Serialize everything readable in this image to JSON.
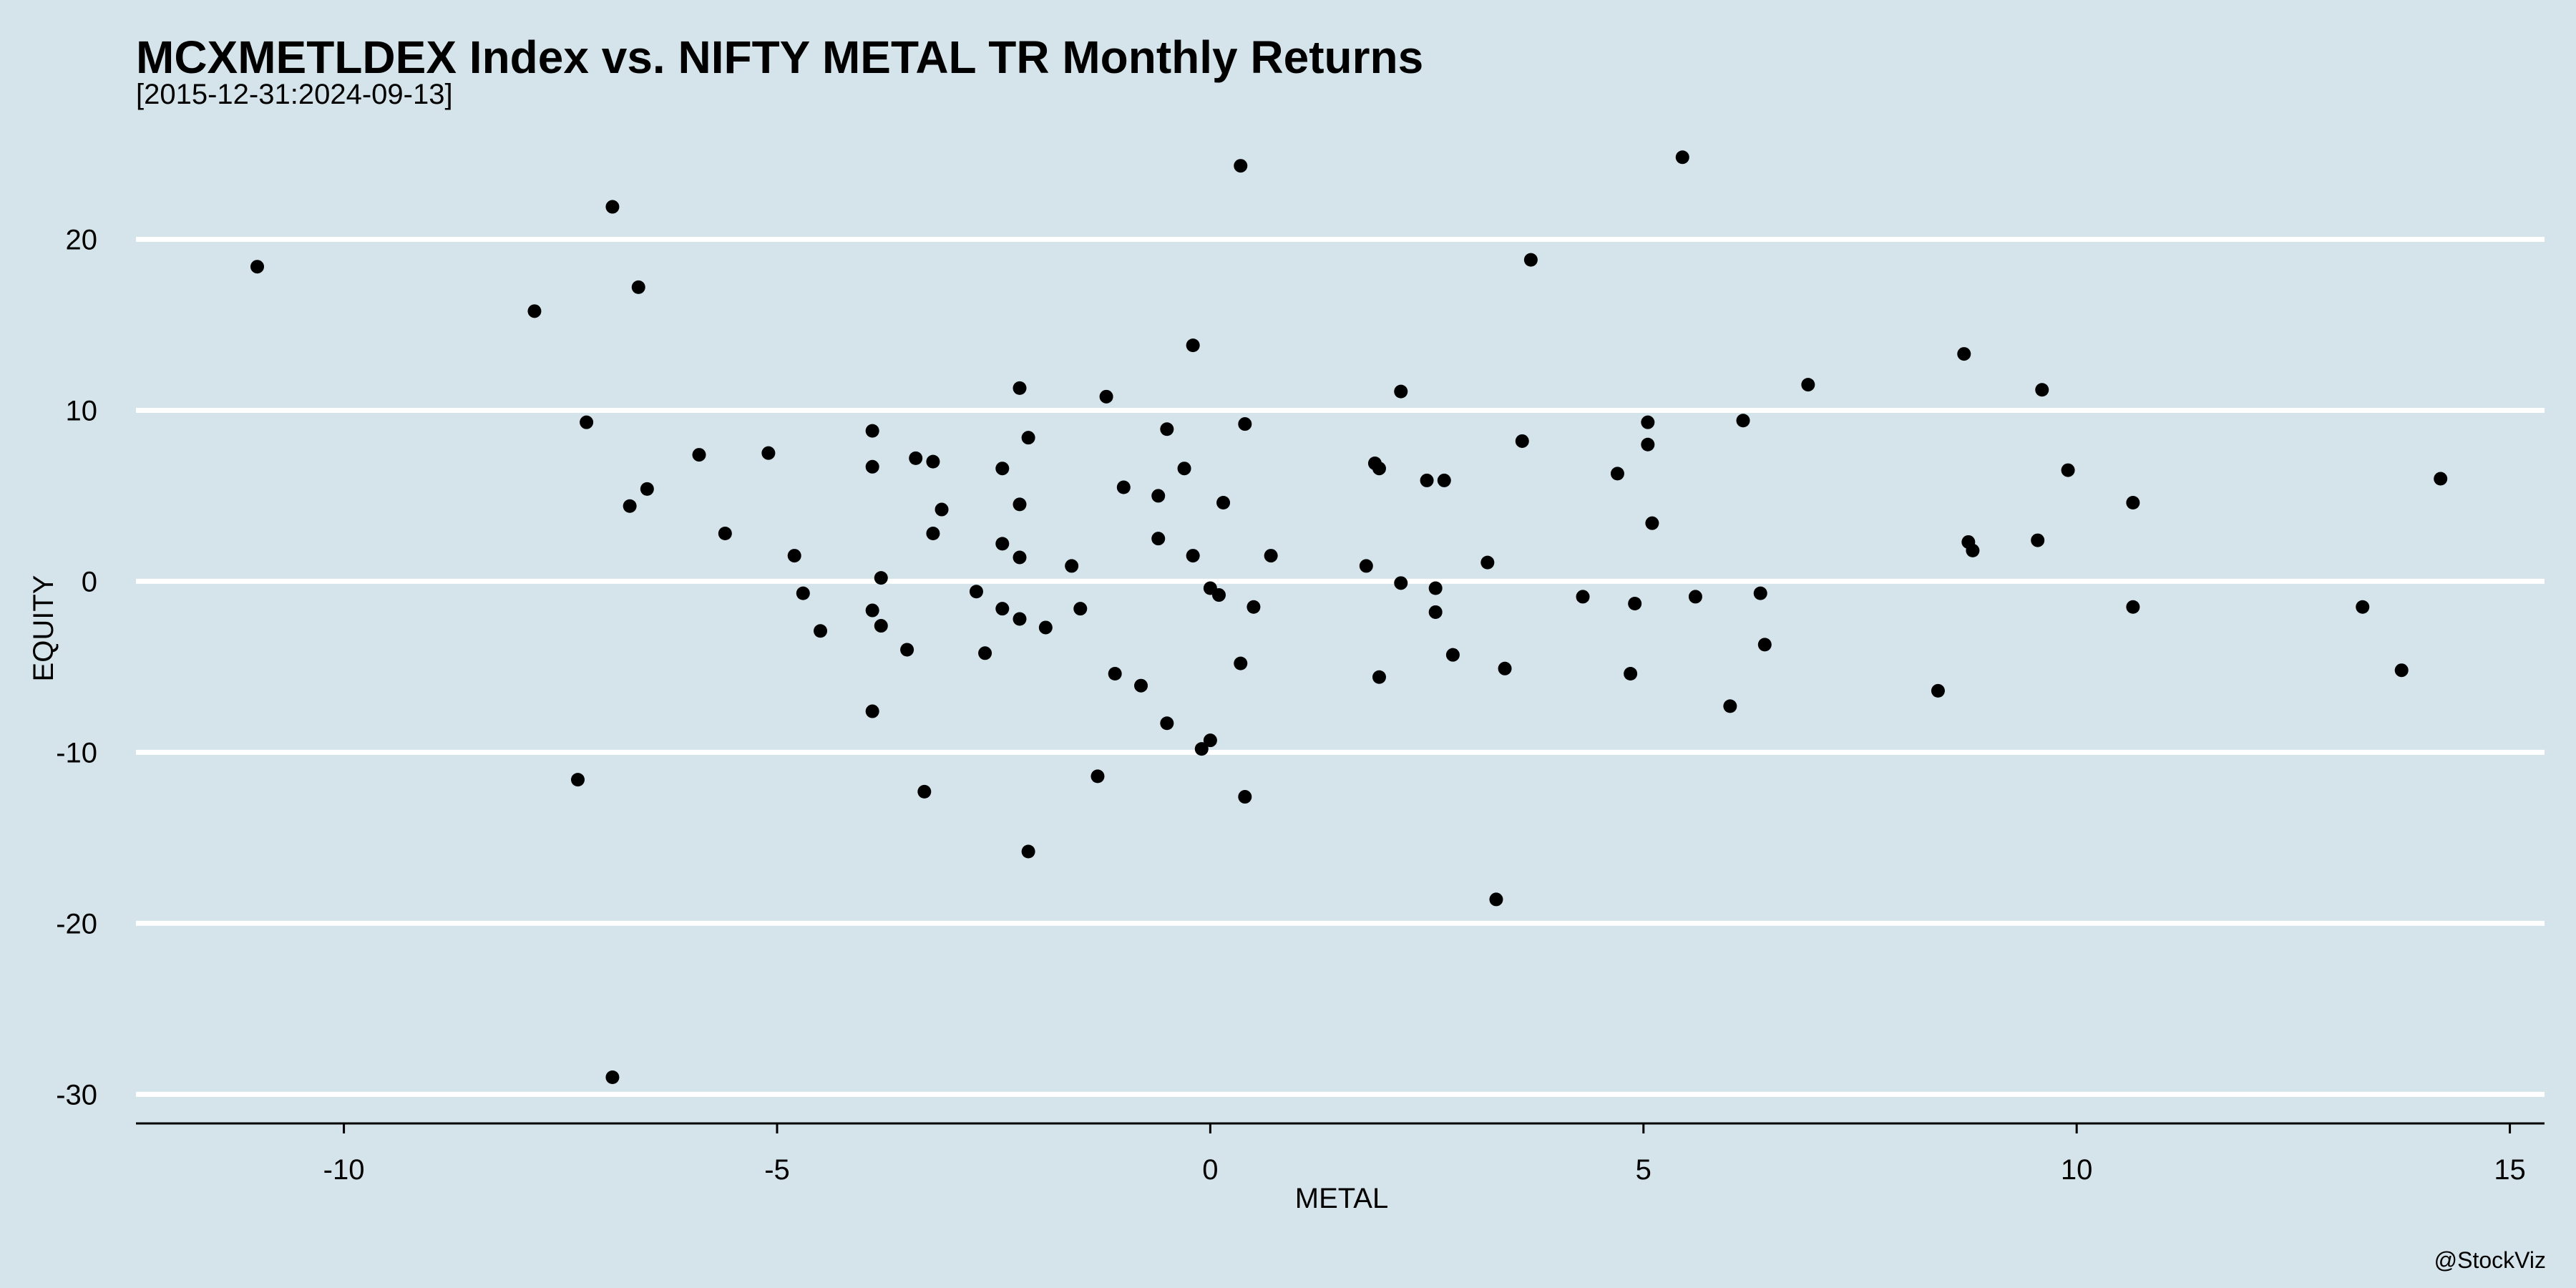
{
  "chart_data": {
    "type": "scatter",
    "title": "MCXMETLDEX Index vs. NIFTY METAL TR Monthly Returns",
    "subtitle": "[2015-12-31:2024-09-13]",
    "xlabel": "METAL",
    "ylabel": "EQUITY",
    "caption": "@StockViz",
    "xlim": [
      -12.4,
      15.4
    ],
    "ylim": [
      -31.7,
      27.3
    ],
    "x_ticks": [
      -10,
      -5,
      0,
      5,
      10,
      15
    ],
    "x_tick_labels": [
      "-10",
      "-5",
      "0",
      "5",
      "10",
      "15"
    ],
    "y_ticks": [
      20,
      10,
      0,
      -10,
      -20,
      -30
    ],
    "y_tick_labels": [
      "20",
      "10",
      "0",
      "-10",
      "-20",
      "-30"
    ],
    "grid": "horizontal",
    "colors": {
      "background": "#d5e4eb",
      "grid": "#ffffff",
      "points": "#000000",
      "axis": "#000000"
    },
    "points": [
      [
        -11.0,
        18.4
      ],
      [
        -7.8,
        15.8
      ],
      [
        -6.9,
        21.9
      ],
      [
        -6.6,
        17.2
      ],
      [
        -7.2,
        9.3
      ],
      [
        -6.7,
        4.4
      ],
      [
        -6.5,
        5.4
      ],
      [
        -7.3,
        -11.6
      ],
      [
        -6.9,
        -29.0
      ],
      [
        -5.9,
        7.4
      ],
      [
        -5.6,
        2.8
      ],
      [
        -5.1,
        7.5
      ],
      [
        -4.8,
        1.5
      ],
      [
        -4.7,
        -0.7
      ],
      [
        -4.5,
        -2.9
      ],
      [
        -3.9,
        8.8
      ],
      [
        -3.9,
        6.7
      ],
      [
        -3.4,
        7.2
      ],
      [
        -3.2,
        7.0
      ],
      [
        -3.1,
        4.2
      ],
      [
        -3.2,
        2.8
      ],
      [
        -3.8,
        0.2
      ],
      [
        -3.9,
        -1.7
      ],
      [
        -3.8,
        -2.6
      ],
      [
        -3.5,
        -4.0
      ],
      [
        -3.9,
        -7.6
      ],
      [
        -3.3,
        -12.3
      ],
      [
        -2.2,
        11.3
      ],
      [
        -2.1,
        8.4
      ],
      [
        -2.4,
        6.6
      ],
      [
        -2.2,
        4.5
      ],
      [
        -2.4,
        2.2
      ],
      [
        -2.2,
        1.4
      ],
      [
        -2.7,
        -0.6
      ],
      [
        -2.4,
        -1.6
      ],
      [
        -2.2,
        -2.2
      ],
      [
        -2.6,
        -4.2
      ],
      [
        -1.9,
        -2.7
      ],
      [
        -1.6,
        0.9
      ],
      [
        -1.5,
        -1.6
      ],
      [
        -2.1,
        -15.8
      ],
      [
        -1.2,
        10.8
      ],
      [
        -1.1,
        -5.4
      ],
      [
        -1.0,
        5.5
      ],
      [
        -0.8,
        -6.1
      ],
      [
        -1.3,
        -11.4
      ],
      [
        -0.6,
        2.5
      ],
      [
        -0.6,
        5.0
      ],
      [
        -0.5,
        8.9
      ],
      [
        -0.5,
        -8.3
      ],
      [
        -0.3,
        6.6
      ],
      [
        -0.2,
        13.8
      ],
      [
        -0.2,
        1.5
      ],
      [
        -0.1,
        -9.8
      ],
      [
        0.0,
        -9.3
      ],
      [
        0.0,
        -0.4
      ],
      [
        0.1,
        -0.8
      ],
      [
        0.15,
        4.6
      ],
      [
        0.35,
        24.3
      ],
      [
        0.4,
        9.2
      ],
      [
        0.35,
        -4.8
      ],
      [
        0.4,
        -12.6
      ],
      [
        0.5,
        -1.5
      ],
      [
        0.7,
        1.5
      ],
      [
        1.8,
        0.9
      ],
      [
        1.9,
        6.9
      ],
      [
        1.95,
        6.6
      ],
      [
        1.95,
        -5.6
      ],
      [
        2.2,
        11.1
      ],
      [
        2.2,
        -0.1
      ],
      [
        2.5,
        5.9
      ],
      [
        2.6,
        -0.4
      ],
      [
        2.6,
        -1.8
      ],
      [
        2.7,
        5.9
      ],
      [
        2.8,
        -4.3
      ],
      [
        3.2,
        1.1
      ],
      [
        3.3,
        -18.6
      ],
      [
        3.4,
        -5.1
      ],
      [
        3.6,
        8.2
      ],
      [
        3.7,
        18.8
      ],
      [
        4.3,
        -0.9
      ],
      [
        4.7,
        6.3
      ],
      [
        4.85,
        -5.4
      ],
      [
        4.9,
        -1.3
      ],
      [
        5.05,
        8.0
      ],
      [
        5.05,
        9.3
      ],
      [
        5.1,
        3.4
      ],
      [
        5.45,
        24.8
      ],
      [
        5.6,
        -0.9
      ],
      [
        6.0,
        -7.3
      ],
      [
        6.15,
        9.4
      ],
      [
        6.35,
        -0.7
      ],
      [
        6.4,
        -3.7
      ],
      [
        6.9,
        11.5
      ],
      [
        8.4,
        -6.4
      ],
      [
        8.7,
        13.3
      ],
      [
        8.75,
        2.3
      ],
      [
        8.8,
        1.8
      ],
      [
        9.55,
        2.4
      ],
      [
        9.6,
        11.2
      ],
      [
        9.9,
        6.5
      ],
      [
        10.65,
        4.6
      ],
      [
        10.65,
        -1.5
      ],
      [
        13.3,
        -1.5
      ],
      [
        13.75,
        -5.2
      ],
      [
        14.2,
        6.0
      ]
    ]
  }
}
